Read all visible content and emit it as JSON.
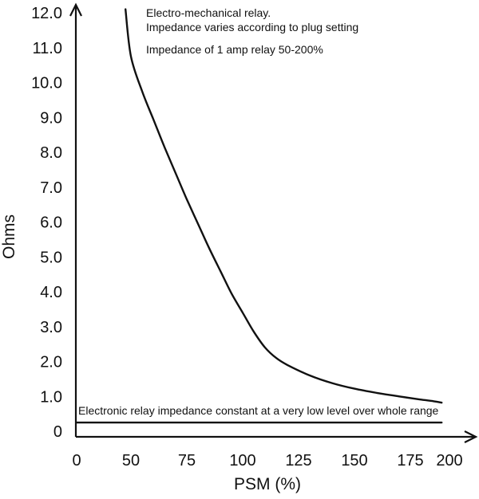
{
  "chart_data": {
    "type": "line",
    "title": "",
    "xlabel": "PSM (%)",
    "ylabel": "Ohms",
    "x_tick_labels": [
      "0",
      "50",
      "75",
      "100",
      "125",
      "150",
      "175",
      "200"
    ],
    "y_tick_labels": [
      "0",
      "1.0",
      "2.0",
      "3.0",
      "4.0",
      "5.0",
      "6.0",
      "7.0",
      "8.0",
      "9.0",
      "10.0",
      "11.0",
      "12.0"
    ],
    "ylim": [
      0,
      12
    ],
    "grid": false,
    "legend": "none",
    "line_color": "#111111",
    "series": [
      {
        "x": [
          45,
          50,
          55,
          60,
          65,
          70,
          75,
          80,
          85,
          90,
          95,
          100,
          105,
          110,
          115,
          120,
          130,
          140,
          150,
          160,
          170,
          180,
          190,
          195
        ],
        "y": [
          12.1,
          10.75,
          9.75,
          8.95,
          8.15,
          7.4,
          6.65,
          5.95,
          5.25,
          4.6,
          3.95,
          3.4,
          2.85,
          2.4,
          2.1,
          1.9,
          1.6,
          1.38,
          1.22,
          1.1,
          1.0,
          0.92,
          0.86,
          0.82
        ]
      },
      {
        "x": [
          0,
          195
        ],
        "y": [
          0.25,
          0.25
        ]
      }
    ],
    "annotations": [
      "Electro-mechanical relay.",
      "Impedance varies according to plug setting",
      "Impedance of 1 amp relay 50-200%",
      "Electronic relay impedance constant at a very low level over whole range"
    ]
  }
}
